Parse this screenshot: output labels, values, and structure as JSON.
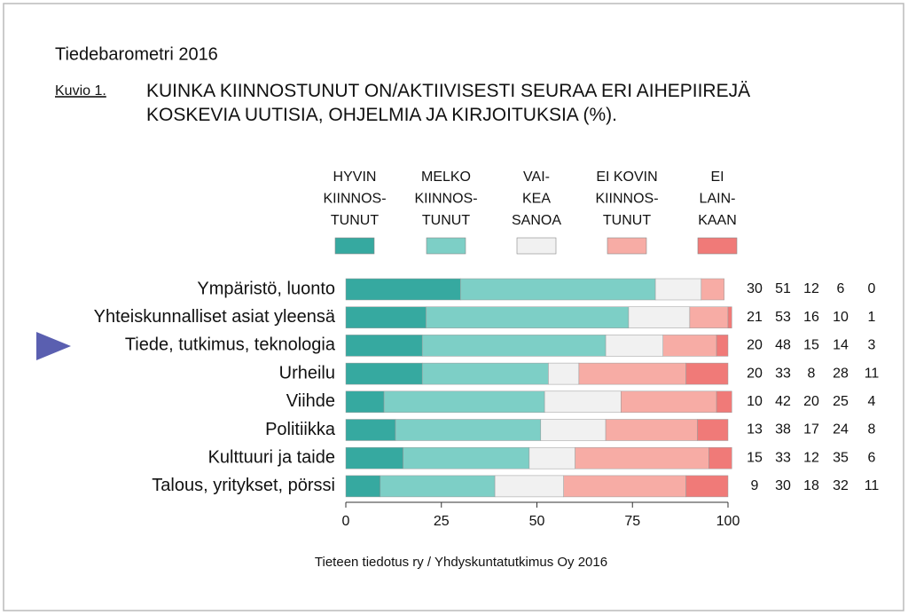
{
  "chart_data": {
    "type": "bar",
    "orientation": "horizontal",
    "stacked": true,
    "title": "Tiedebarometri 2016",
    "figure_label": "Kuvio 1.",
    "subtitle": "KUINKA KIINNOSTUNUT ON/AKTIIVISESTI SEURAA ERI AIHEPIIREJÄ\nKOSKEVIA UUTISIA, OHJELMIA JA KIRJOITUKSIA (%).",
    "source": "Tieteen tiedotus ry / Yhdyskuntatutkimus Oy 2016",
    "categories": [
      "Ympäristö, luonto",
      "Yhteiskunnalliset asiat yleensä",
      "Tiede, tutkimus, teknologia",
      "Urheilu",
      "Viihde",
      "Politiikka",
      "Kulttuuri ja taide",
      "Talous, yritykset, pörssi"
    ],
    "series": [
      {
        "name": "HYVIN\nKIINNOS-\nTUNUT",
        "color": "#36a9a0",
        "values": [
          30,
          21,
          20,
          20,
          10,
          13,
          15,
          9
        ]
      },
      {
        "name": "MELKO\nKIINNOS-\nTUNUT",
        "color": "#7dcfc6",
        "values": [
          51,
          53,
          48,
          33,
          42,
          38,
          33,
          30
        ]
      },
      {
        "name": "VAI-\nKEA\nSANOA",
        "color": "#f1f1f1",
        "values": [
          12,
          16,
          15,
          8,
          20,
          17,
          12,
          18
        ]
      },
      {
        "name": "EI KOVIN\nKIINNOS-\nTUNUT",
        "color": "#f7aca5",
        "values": [
          6,
          10,
          14,
          28,
          25,
          24,
          35,
          32
        ]
      },
      {
        "name": "EI\nLAIN-\nKAAN",
        "color": "#f07a78",
        "values": [
          0,
          1,
          3,
          11,
          4,
          8,
          6,
          11
        ]
      }
    ],
    "xlim": [
      0,
      100
    ],
    "xticks": [
      0,
      25,
      50,
      75,
      100
    ],
    "grid": false,
    "legend": "top"
  }
}
